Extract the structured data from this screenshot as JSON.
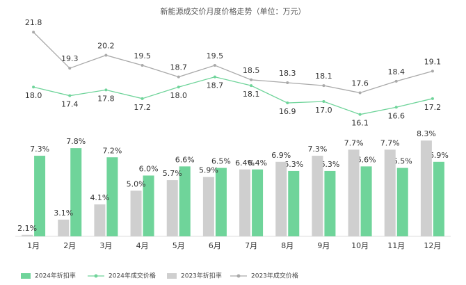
{
  "chart_data": {
    "type": "bar-line",
    "title": "新能源成交价月度价格走势（单位：万元）",
    "categories": [
      "1月",
      "2月",
      "3月",
      "4月",
      "5月",
      "6月",
      "7月",
      "8月",
      "9月",
      "10月",
      "11月",
      "12月"
    ],
    "ylim": [
      2,
      8.4
    ],
    "y2lim": [
      14.4,
      22.1
    ],
    "series": [
      {
        "name": "2024年折扣率",
        "type": "bar",
        "color": "#6fd49a",
        "values": [
          7.3,
          7.8,
          7.2,
          6.0,
          6.6,
          6.5,
          6.4,
          6.3,
          6.3,
          6.6,
          6.5,
          6.9
        ],
        "value_labels": [
          "7.3%",
          "7.8%",
          "7.2%",
          "6.0%",
          "6.6%",
          "6.5%",
          "6.4%",
          "6.3%",
          "6.3%",
          "6.6%",
          "6.5%",
          "6.9%"
        ]
      },
      {
        "name": "2024年成交价格",
        "type": "line",
        "axis": "y2",
        "color": "#6fd49a",
        "values": [
          18.0,
          17.4,
          17.8,
          17.2,
          18.0,
          18.7,
          18.1,
          16.9,
          17.0,
          16.1,
          16.6,
          17.2
        ],
        "value_labels": [
          "18.0",
          "17.4",
          "17.8",
          "17.2",
          "18.0",
          "18.7",
          "18.1",
          "16.9",
          "17.0",
          "16.1",
          "16.6",
          "17.2"
        ]
      },
      {
        "name": "2023年折扣率",
        "type": "bar",
        "color": "#cfcfcf",
        "values": [
          2.1,
          3.1,
          4.1,
          5.0,
          5.7,
          5.9,
          6.4,
          6.9,
          7.3,
          7.7,
          7.7,
          8.3
        ],
        "value_labels": [
          "2.1%",
          "3.1%",
          "4.1%",
          "5.0%",
          "5.7%",
          "5.9%",
          "6.4%",
          "6.9%",
          "7.3%",
          "7.7%",
          "7.7%",
          "8.3%"
        ]
      },
      {
        "name": "2023年成交价格",
        "type": "line",
        "axis": "y2",
        "color": "#a9a9a9",
        "values": [
          21.8,
          19.3,
          20.2,
          19.5,
          18.7,
          19.5,
          18.5,
          18.3,
          18.1,
          17.6,
          18.4,
          19.1
        ],
        "value_labels": [
          "21.8",
          "19.3",
          "20.2",
          "19.5",
          "18.7",
          "19.5",
          "18.5",
          "18.3",
          "18.1",
          "17.6",
          "18.4",
          "19.1"
        ]
      }
    ]
  }
}
